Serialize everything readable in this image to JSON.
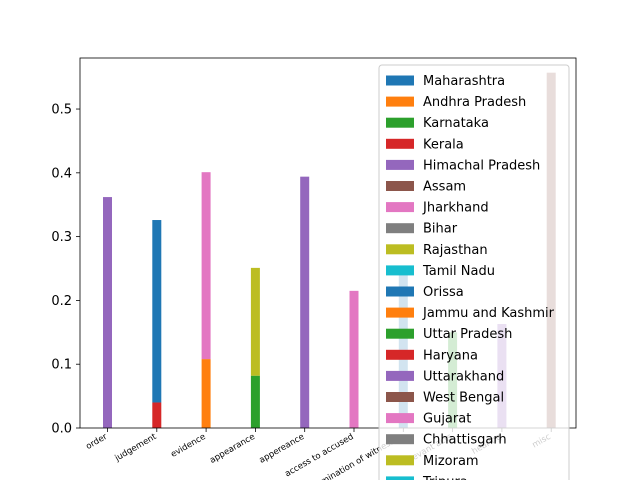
{
  "chart_data": {
    "type": "bar",
    "stacked": true,
    "categories": [
      "order",
      "judgement",
      "evidence",
      "appearance",
      "appereance",
      "access to accused",
      "examination of witnesses",
      "relevant acts",
      "hearing",
      "misc"
    ],
    "ylim": [
      0,
      0.58
    ],
    "yticks": [
      "0.0",
      "0.1",
      "0.2",
      "0.3",
      "0.4",
      "0.5"
    ],
    "grid": false,
    "legend_position": "upper right",
    "series": [
      {
        "name": "Maharashtra",
        "color": "#1f77b4",
        "values": [
          0,
          0,
          0,
          0,
          0,
          0,
          0,
          0,
          0,
          0
        ]
      },
      {
        "name": "Andhra Pradesh",
        "color": "#ff7f0e",
        "values": [
          0,
          0,
          0.108,
          0,
          0,
          0,
          0,
          0,
          0,
          0
        ]
      },
      {
        "name": "Karnataka",
        "color": "#2ca02c",
        "values": [
          0,
          0,
          0,
          0.082,
          0,
          0,
          0,
          0,
          0,
          0
        ]
      },
      {
        "name": "Kerala",
        "color": "#d62728",
        "values": [
          0,
          0.04,
          0,
          0,
          0,
          0,
          0,
          0,
          0,
          0
        ]
      },
      {
        "name": "Himachal Pradesh",
        "color": "#9467bd",
        "values": [
          0.362,
          0,
          0,
          0,
          0,
          0,
          0,
          0,
          0,
          0
        ]
      },
      {
        "name": "Assam",
        "color": "#8c564b",
        "values": [
          0,
          0,
          0,
          0,
          0,
          0,
          0,
          0,
          0,
          0
        ]
      },
      {
        "name": "Jharkhand",
        "color": "#e377c2",
        "values": [
          0,
          0,
          0.293,
          0,
          0,
          0.215,
          0,
          0,
          0,
          0
        ]
      },
      {
        "name": "Bihar",
        "color": "#7f7f7f",
        "values": [
          0,
          0,
          0,
          0,
          0,
          0,
          0,
          0,
          0,
          0
        ]
      },
      {
        "name": "Rajasthan",
        "color": "#bcbd22",
        "values": [
          0,
          0,
          0,
          0.169,
          0,
          0,
          0,
          0,
          0,
          0
        ]
      },
      {
        "name": "Tamil Nadu",
        "color": "#17becf",
        "values": [
          0,
          0,
          0,
          0,
          0,
          0,
          0,
          0,
          0,
          0
        ]
      },
      {
        "name": "Orissa",
        "color": "#1f77b4",
        "values": [
          0,
          0.286,
          0,
          0,
          0,
          0,
          0.242,
          0,
          0,
          0
        ]
      },
      {
        "name": "Jammu and Kashmir",
        "color": "#ff7f0e",
        "values": [
          0,
          0,
          0,
          0,
          0,
          0,
          0,
          0,
          0,
          0
        ]
      },
      {
        "name": "Uttar Pradesh",
        "color": "#2ca02c",
        "values": [
          0,
          0,
          0,
          0,
          0,
          0,
          0,
          0.15,
          0,
          0
        ]
      },
      {
        "name": "Haryana",
        "color": "#d62728",
        "values": [
          0,
          0,
          0,
          0,
          0,
          0,
          0,
          0,
          0,
          0
        ]
      },
      {
        "name": "Uttarakhand",
        "color": "#9467bd",
        "values": [
          0,
          0,
          0,
          0,
          0.394,
          0,
          0,
          0,
          0.163,
          0
        ]
      },
      {
        "name": "West Bengal",
        "color": "#8c564b",
        "values": [
          0,
          0,
          0,
          0,
          0,
          0,
          0,
          0,
          0,
          0.557
        ]
      },
      {
        "name": "Gujarat",
        "color": "#e377c2",
        "values": [
          0,
          0,
          0,
          0,
          0,
          0,
          0,
          0,
          0,
          0
        ]
      },
      {
        "name": "Chhattisgarh",
        "color": "#7f7f7f",
        "values": [
          0,
          0,
          0,
          0,
          0,
          0,
          0,
          0,
          0,
          0
        ]
      },
      {
        "name": "Mizoram",
        "color": "#bcbd22",
        "values": [
          0,
          0,
          0,
          0,
          0,
          0,
          0,
          0,
          0,
          0
        ]
      },
      {
        "name": "Tripura",
        "color": "#17becf",
        "values": [
          0,
          0,
          0,
          0,
          0,
          0,
          0,
          0,
          0,
          0
        ]
      }
    ]
  }
}
